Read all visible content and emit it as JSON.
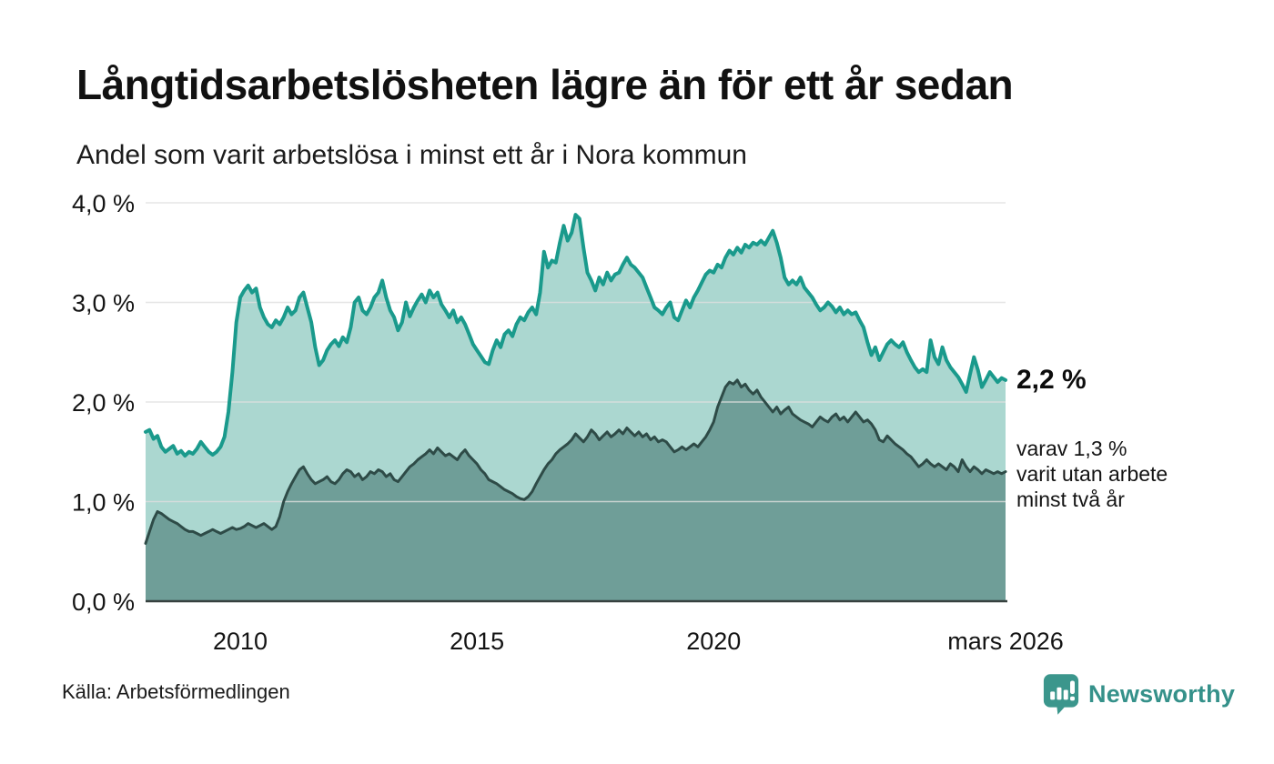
{
  "header": {
    "title": "Långtidsarbetslösheten lägre än för ett år sedan",
    "subtitle": "Andel som varit arbetslösa i minst ett år i Nora kommun"
  },
  "annotations": {
    "latest_total_label": "2,2 %",
    "secondary_line1": "varav 1,3 %",
    "secondary_line2": "varit utan arbete",
    "secondary_line3": "minst två år"
  },
  "footer": {
    "source": "Källa: Arbetsförmedlingen",
    "brand_name": "Newsworthy"
  },
  "colors": {
    "total_line": "#1a9a8c",
    "total_fill": "#abd7d0",
    "two_year_line": "#2e4b47",
    "two_year_fill": "#6f9e98",
    "grid": "#dedede",
    "axis_line": "#37413f",
    "text": "#141414",
    "brand_teal": "#35918a"
  },
  "chart_data": {
    "type": "area",
    "title": "Långtidsarbetslösheten lägre än för ett år sedan",
    "subtitle": "Andel som varit arbetslösa i minst ett år i Nora kommun",
    "unit": "%",
    "x_start": "2008-01",
    "x_end": "2026-03",
    "ylim": [
      0,
      4
    ],
    "grid": true,
    "legend": "none",
    "yticks": [
      {
        "value": 0,
        "label": "0,0 %"
      },
      {
        "value": 1,
        "label": "1,0 %"
      },
      {
        "value": 2,
        "label": "2,0 %"
      },
      {
        "value": 3,
        "label": "3,0 %"
      },
      {
        "value": 4,
        "label": "4,0 %"
      }
    ],
    "xticks": [
      {
        "label": "2010",
        "t": 0.1101
      },
      {
        "label": "2015",
        "t": 0.3853
      },
      {
        "label": "2020",
        "t": 0.6606
      },
      {
        "label": "mars 2026",
        "t": 1.0
      }
    ],
    "series": [
      {
        "name": "Arbetslösa minst ett år",
        "end_label": "2,2 %",
        "end_value": 2.2,
        "line_color": "#1a9a8c",
        "fill_color": "#abd7d0",
        "values": [
          1.7,
          1.72,
          1.63,
          1.66,
          1.55,
          1.5,
          1.53,
          1.56,
          1.48,
          1.51,
          1.46,
          1.5,
          1.48,
          1.53,
          1.6,
          1.55,
          1.5,
          1.47,
          1.5,
          1.55,
          1.65,
          1.9,
          2.3,
          2.8,
          3.05,
          3.12,
          3.17,
          3.1,
          3.14,
          2.95,
          2.85,
          2.78,
          2.75,
          2.82,
          2.78,
          2.85,
          2.95,
          2.88,
          2.92,
          3.05,
          3.1,
          2.95,
          2.8,
          2.55,
          2.37,
          2.42,
          2.52,
          2.58,
          2.62,
          2.56,
          2.65,
          2.6,
          2.75,
          3.0,
          3.05,
          2.92,
          2.88,
          2.95,
          3.05,
          3.1,
          3.22,
          3.05,
          2.92,
          2.85,
          2.72,
          2.8,
          3.0,
          2.86,
          2.95,
          3.02,
          3.08,
          3.0,
          3.12,
          3.05,
          3.1,
          2.98,
          2.92,
          2.85,
          2.92,
          2.8,
          2.85,
          2.78,
          2.68,
          2.58,
          2.52,
          2.46,
          2.4,
          2.38,
          2.52,
          2.62,
          2.55,
          2.68,
          2.72,
          2.66,
          2.78,
          2.85,
          2.82,
          2.9,
          2.95,
          2.88,
          3.1,
          3.51,
          3.35,
          3.42,
          3.4,
          3.6,
          3.77,
          3.62,
          3.7,
          3.88,
          3.84,
          3.55,
          3.3,
          3.22,
          3.12,
          3.25,
          3.18,
          3.3,
          3.22,
          3.28,
          3.3,
          3.38,
          3.45,
          3.38,
          3.35,
          3.3,
          3.25,
          3.15,
          3.05,
          2.95,
          2.92,
          2.88,
          2.95,
          3.0,
          2.85,
          2.82,
          2.92,
          3.02,
          2.95,
          3.05,
          3.12,
          3.2,
          3.28,
          3.32,
          3.3,
          3.38,
          3.35,
          3.45,
          3.52,
          3.48,
          3.55,
          3.5,
          3.58,
          3.55,
          3.6,
          3.58,
          3.62,
          3.58,
          3.65,
          3.72,
          3.6,
          3.45,
          3.25,
          3.18,
          3.22,
          3.18,
          3.25,
          3.15,
          3.1,
          3.05,
          2.98,
          2.92,
          2.95,
          3.0,
          2.96,
          2.9,
          2.95,
          2.88,
          2.92,
          2.88,
          2.9,
          2.82,
          2.75,
          2.6,
          2.47,
          2.55,
          2.42,
          2.5,
          2.58,
          2.62,
          2.58,
          2.55,
          2.6,
          2.5,
          2.42,
          2.35,
          2.3,
          2.33,
          2.3,
          2.62,
          2.45,
          2.38,
          2.55,
          2.42,
          2.35,
          2.3,
          2.25,
          2.18,
          2.1,
          2.28,
          2.45,
          2.32,
          2.15,
          2.22,
          2.3,
          2.25,
          2.2,
          2.24,
          2.22
        ]
      },
      {
        "name": "Varit utan arbete minst två år",
        "end_label": "1,3 %",
        "end_value": 1.3,
        "line_color": "#2e4b47",
        "fill_color": "#6f9e98",
        "values": [
          0.58,
          0.7,
          0.82,
          0.9,
          0.88,
          0.85,
          0.82,
          0.8,
          0.78,
          0.75,
          0.72,
          0.7,
          0.7,
          0.68,
          0.66,
          0.68,
          0.7,
          0.72,
          0.7,
          0.68,
          0.7,
          0.72,
          0.74,
          0.72,
          0.73,
          0.75,
          0.78,
          0.76,
          0.74,
          0.76,
          0.78,
          0.75,
          0.72,
          0.75,
          0.85,
          1.0,
          1.1,
          1.18,
          1.25,
          1.32,
          1.35,
          1.28,
          1.22,
          1.18,
          1.2,
          1.22,
          1.25,
          1.2,
          1.18,
          1.22,
          1.28,
          1.32,
          1.3,
          1.25,
          1.28,
          1.22,
          1.25,
          1.3,
          1.28,
          1.32,
          1.3,
          1.25,
          1.28,
          1.22,
          1.2,
          1.25,
          1.3,
          1.35,
          1.38,
          1.42,
          1.45,
          1.48,
          1.52,
          1.48,
          1.54,
          1.5,
          1.46,
          1.48,
          1.45,
          1.42,
          1.48,
          1.52,
          1.46,
          1.42,
          1.38,
          1.32,
          1.28,
          1.22,
          1.2,
          1.18,
          1.15,
          1.12,
          1.1,
          1.08,
          1.05,
          1.03,
          1.02,
          1.05,
          1.1,
          1.18,
          1.25,
          1.32,
          1.38,
          1.42,
          1.48,
          1.52,
          1.55,
          1.58,
          1.62,
          1.68,
          1.64,
          1.6,
          1.65,
          1.72,
          1.68,
          1.62,
          1.66,
          1.7,
          1.65,
          1.68,
          1.72,
          1.68,
          1.74,
          1.7,
          1.66,
          1.7,
          1.65,
          1.68,
          1.62,
          1.65,
          1.6,
          1.62,
          1.6,
          1.55,
          1.5,
          1.52,
          1.55,
          1.52,
          1.55,
          1.58,
          1.55,
          1.6,
          1.65,
          1.72,
          1.8,
          1.95,
          2.05,
          2.15,
          2.2,
          2.18,
          2.22,
          2.15,
          2.18,
          2.12,
          2.08,
          2.12,
          2.05,
          2.0,
          1.95,
          1.9,
          1.95,
          1.88,
          1.92,
          1.95,
          1.88,
          1.85,
          1.82,
          1.8,
          1.78,
          1.75,
          1.8,
          1.85,
          1.82,
          1.8,
          1.85,
          1.88,
          1.82,
          1.85,
          1.8,
          1.85,
          1.9,
          1.85,
          1.8,
          1.82,
          1.78,
          1.72,
          1.62,
          1.6,
          1.66,
          1.62,
          1.58,
          1.55,
          1.52,
          1.48,
          1.45,
          1.4,
          1.35,
          1.38,
          1.42,
          1.38,
          1.35,
          1.38,
          1.35,
          1.32,
          1.38,
          1.35,
          1.3,
          1.42,
          1.35,
          1.3,
          1.35,
          1.32,
          1.28,
          1.32,
          1.3,
          1.28,
          1.3,
          1.28,
          1.3
        ]
      }
    ]
  }
}
